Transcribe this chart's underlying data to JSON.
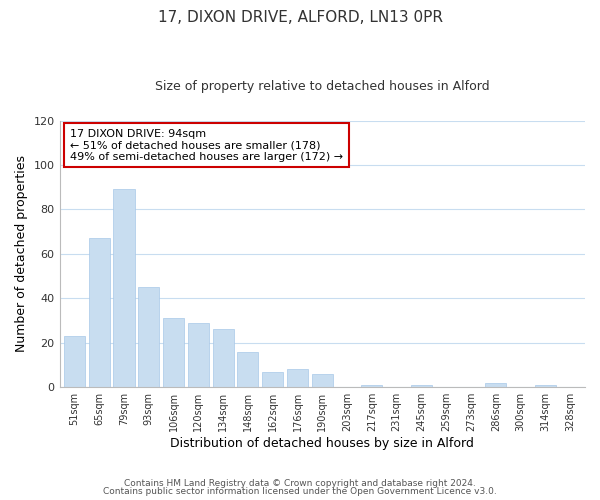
{
  "title": "17, DIXON DRIVE, ALFORD, LN13 0PR",
  "subtitle": "Size of property relative to detached houses in Alford",
  "xlabel": "Distribution of detached houses by size in Alford",
  "ylabel": "Number of detached properties",
  "categories": [
    "51sqm",
    "65sqm",
    "79sqm",
    "93sqm",
    "106sqm",
    "120sqm",
    "134sqm",
    "148sqm",
    "162sqm",
    "176sqm",
    "190sqm",
    "203sqm",
    "217sqm",
    "231sqm",
    "245sqm",
    "259sqm",
    "273sqm",
    "286sqm",
    "300sqm",
    "314sqm",
    "328sqm"
  ],
  "values": [
    23,
    67,
    89,
    45,
    31,
    29,
    26,
    16,
    7,
    8,
    6,
    0,
    1,
    0,
    1,
    0,
    0,
    2,
    0,
    1,
    0
  ],
  "bar_color": "#c8ddf0",
  "bar_edgecolor": "#a8c8e8",
  "annotation_line1": "17 DIXON DRIVE: 94sqm",
  "annotation_line2": "← 51% of detached houses are smaller (178)",
  "annotation_line3": "49% of semi-detached houses are larger (172) →",
  "ylim": [
    0,
    120
  ],
  "yticks": [
    0,
    20,
    40,
    60,
    80,
    100,
    120
  ],
  "footer_line1": "Contains HM Land Registry data © Crown copyright and database right 2024.",
  "footer_line2": "Contains public sector information licensed under the Open Government Licence v3.0.",
  "background_color": "#ffffff",
  "grid_color": "#c8ddf0",
  "box_edge_color": "#cc0000",
  "title_fontsize": 11,
  "subtitle_fontsize": 9
}
